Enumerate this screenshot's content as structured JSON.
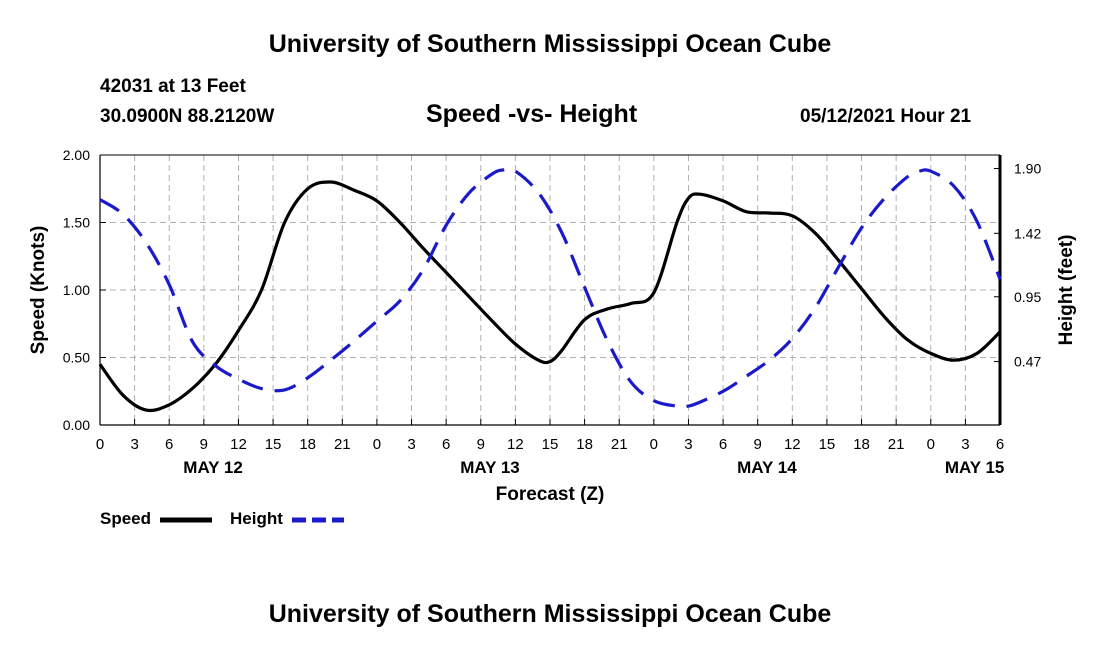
{
  "header": {
    "title": "University of Southern Mississippi Ocean Cube",
    "station": "42031 at 13 Feet",
    "coords": "30.0900N  88.2120W",
    "subtitle": "Speed -vs- Height",
    "datetime": "05/12/2021 Hour 21"
  },
  "footer": {
    "title": "University of Southern Mississippi Ocean Cube"
  },
  "legend": {
    "speed_label": "Speed",
    "height_label": "Height"
  },
  "colors": {
    "speed": "#000000",
    "height": "#1a1acc",
    "grid": "#b0b0b0"
  },
  "chart_data": {
    "type": "line",
    "title": "Speed -vs- Height",
    "xlabel": "Forecast (Z)",
    "ylabel": "Speed (Knots)",
    "y2label": "Height (feet)",
    "x_range_hours": [
      0,
      78
    ],
    "x_ticks": [
      {
        "h": 0,
        "label": "0"
      },
      {
        "h": 3,
        "label": "3"
      },
      {
        "h": 6,
        "label": "6"
      },
      {
        "h": 9,
        "label": "9"
      },
      {
        "h": 12,
        "label": "12"
      },
      {
        "h": 15,
        "label": "15"
      },
      {
        "h": 18,
        "label": "18"
      },
      {
        "h": 21,
        "label": "21"
      },
      {
        "h": 24,
        "label": "0"
      },
      {
        "h": 27,
        "label": "3"
      },
      {
        "h": 30,
        "label": "6"
      },
      {
        "h": 33,
        "label": "9"
      },
      {
        "h": 36,
        "label": "12"
      },
      {
        "h": 39,
        "label": "15"
      },
      {
        "h": 42,
        "label": "18"
      },
      {
        "h": 45,
        "label": "21"
      },
      {
        "h": 48,
        "label": "0"
      },
      {
        "h": 51,
        "label": "3"
      },
      {
        "h": 54,
        "label": "6"
      },
      {
        "h": 57,
        "label": "9"
      },
      {
        "h": 60,
        "label": "12"
      },
      {
        "h": 63,
        "label": "15"
      },
      {
        "h": 66,
        "label": "18"
      },
      {
        "h": 69,
        "label": "21"
      },
      {
        "h": 72,
        "label": "0"
      },
      {
        "h": 75,
        "label": "3"
      },
      {
        "h": 78,
        "label": "6"
      }
    ],
    "day_labels": [
      {
        "h": 9.8,
        "label": "MAY 12"
      },
      {
        "h": 33.8,
        "label": "MAY 13"
      },
      {
        "h": 57.8,
        "label": "MAY 14"
      },
      {
        "h": 75.8,
        "label": "MAY 15"
      }
    ],
    "y_range": [
      0,
      2.0
    ],
    "y_ticks": [
      "0.00",
      "0.50",
      "1.00",
      "1.50",
      "2.00"
    ],
    "y2_range": [
      0.0,
      2.0
    ],
    "y2_ticks": [
      {
        "v": 0.47,
        "label": "0.47"
      },
      {
        "v": 0.95,
        "label": "0.95"
      },
      {
        "v": 1.42,
        "label": "1.42"
      },
      {
        "v": 1.9,
        "label": "1.90"
      }
    ],
    "series": [
      {
        "name": "Speed",
        "axis": "left",
        "style": "solid",
        "x": [
          0,
          2,
          4,
          6,
          8,
          10,
          12,
          14,
          16,
          18,
          20,
          22,
          24,
          26,
          28,
          30,
          32,
          34,
          36,
          38,
          39,
          40,
          42,
          44,
          46,
          48,
          50,
          51,
          52,
          54,
          56,
          58,
          60,
          62,
          64,
          66,
          68,
          70,
          72,
          74,
          76,
          78
        ],
        "values": [
          0.45,
          0.22,
          0.11,
          0.15,
          0.27,
          0.45,
          0.7,
          1.0,
          1.5,
          1.75,
          1.8,
          1.74,
          1.66,
          1.5,
          1.31,
          1.13,
          0.95,
          0.77,
          0.6,
          0.48,
          0.47,
          0.55,
          0.78,
          0.86,
          0.9,
          0.98,
          1.5,
          1.68,
          1.71,
          1.66,
          1.58,
          1.57,
          1.55,
          1.42,
          1.22,
          1.01,
          0.8,
          0.63,
          0.53,
          0.48,
          0.53,
          0.69
        ]
      },
      {
        "name": "Height",
        "axis": "right",
        "style": "dashed",
        "x": [
          0,
          2,
          4,
          6,
          8,
          10,
          12,
          14,
          16,
          18,
          20,
          22,
          24,
          26,
          28,
          30,
          32,
          34,
          35,
          36,
          38,
          40,
          42,
          44,
          46,
          48,
          50,
          51,
          52,
          54,
          56,
          58,
          60,
          62,
          64,
          66,
          68,
          70,
          71,
          72,
          74,
          76,
          78
        ],
        "values": [
          1.67,
          1.56,
          1.35,
          1.04,
          0.62,
          0.44,
          0.34,
          0.27,
          0.26,
          0.35,
          0.48,
          0.62,
          0.77,
          0.92,
          1.15,
          1.48,
          1.72,
          1.86,
          1.89,
          1.88,
          1.72,
          1.43,
          1.02,
          0.62,
          0.32,
          0.18,
          0.14,
          0.14,
          0.17,
          0.25,
          0.36,
          0.48,
          0.64,
          0.87,
          1.17,
          1.46,
          1.68,
          1.84,
          1.88,
          1.88,
          1.77,
          1.51,
          1.08
        ]
      }
    ]
  }
}
